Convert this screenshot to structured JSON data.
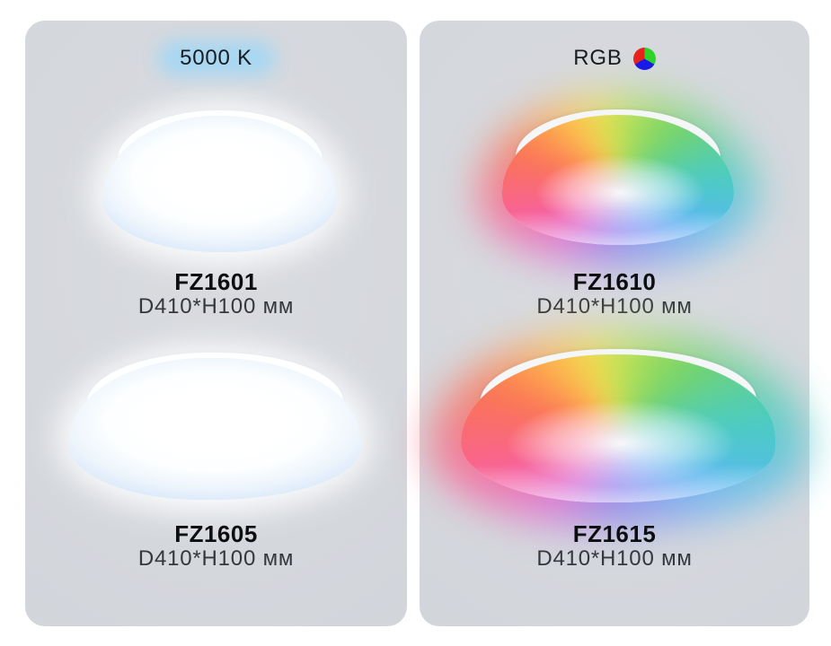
{
  "page": {
    "background": "#ffffff",
    "panel_background": "#d4d7dc"
  },
  "panels": [
    {
      "name": "5000k-panel",
      "light_type": "white-5000k",
      "badge": {
        "label": "5000 K",
        "glow_color": "#a5d7f4"
      },
      "lamp_glow_color": "#eef6ff",
      "products": [
        {
          "model": "FZ1601",
          "dimensions": "D410*H100 мм"
        },
        {
          "model": "FZ1605",
          "dimensions": "D410*H100 мм"
        }
      ]
    },
    {
      "name": "rgb-panel",
      "light_type": "rgb",
      "badge": {
        "label": "RGB",
        "icon": "rgb-pie-icon",
        "icon_colors": [
          "#2ed32a",
          "#1a1ae8",
          "#e8211d"
        ]
      },
      "rgb_cycle_colors": [
        "#c3e257",
        "#77d468",
        "#4accc4",
        "#5cb6f4",
        "#7b92f2",
        "#8a79ec",
        "#dc67d8",
        "#f9619b",
        "#fa7454",
        "#ffb14f",
        "#eedf4f"
      ],
      "products": [
        {
          "model": "FZ1610",
          "dimensions": "D410*H100 мм"
        },
        {
          "model": "FZ1615",
          "dimensions": "D410*H100 мм"
        }
      ]
    }
  ]
}
